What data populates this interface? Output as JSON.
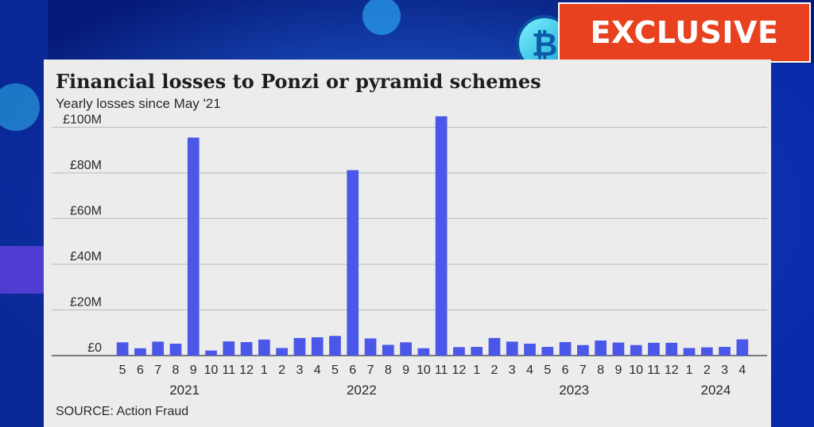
{
  "badge": {
    "label": "EXCLUSIVE"
  },
  "colors": {
    "bar": "#4b57e8",
    "badge": "#e8411f",
    "background": "#0a2fb0",
    "panel": "#ececec"
  },
  "chart_data": {
    "type": "bar",
    "title": "Financial losses to Ponzi or pyramid schemes",
    "subtitle": "Yearly losses since May '21",
    "source": "SOURCE: Action Fraud",
    "ylabel": "",
    "xlabel": "",
    "ylim": [
      0,
      105
    ],
    "yticks": [
      0,
      20,
      40,
      60,
      80,
      100
    ],
    "ytick_labels": [
      "£0",
      "£20M",
      "£40M",
      "£60M",
      "£80M",
      "£100M"
    ],
    "grid": true,
    "categories": [
      "5",
      "6",
      "7",
      "8",
      "9",
      "10",
      "11",
      "12",
      "1",
      "2",
      "3",
      "4",
      "5",
      "6",
      "7",
      "8",
      "9",
      "10",
      "11",
      "12",
      "1",
      "2",
      "3",
      "4",
      "5",
      "6",
      "7",
      "8",
      "9",
      "10",
      "11",
      "12",
      "1",
      "2",
      "3",
      "4"
    ],
    "year_labels": [
      {
        "label": "2021",
        "start": 0,
        "end": 7
      },
      {
        "label": "2022",
        "start": 8,
        "end": 19
      },
      {
        "label": "2023",
        "start": 20,
        "end": 31
      },
      {
        "label": "2024",
        "start": 32,
        "end": 35
      }
    ],
    "values": [
      5.8,
      3.2,
      6.1,
      5.2,
      95.5,
      2.2,
      6.2,
      5.9,
      7.0,
      3.3,
      7.7,
      8.0,
      8.6,
      81.2,
      7.5,
      4.7,
      5.8,
      3.2,
      104.8,
      3.7,
      3.8,
      7.7,
      6.1,
      5.2,
      3.8,
      5.9,
      4.6,
      6.6,
      5.7,
      4.6,
      5.6,
      5.6,
      3.3,
      3.6,
      3.8,
      7.1
    ]
  }
}
